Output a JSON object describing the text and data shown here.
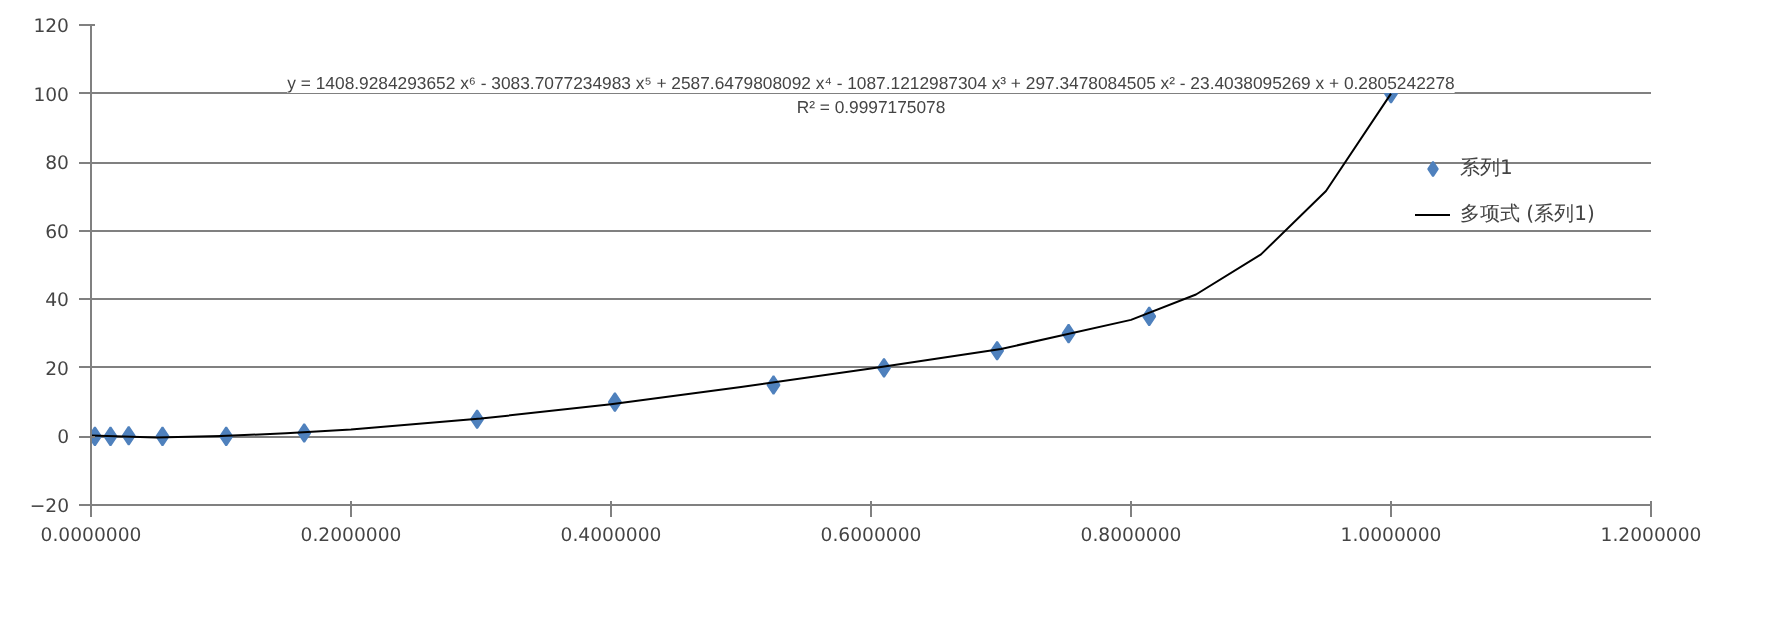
{
  "chart_data": {
    "type": "scatter",
    "xlim": [
      0,
      1.2
    ],
    "ylim": [
      -20,
      120
    ],
    "xticks": [
      {
        "value": 0,
        "label": "0.0000000"
      },
      {
        "value": 0.2,
        "label": "0.2000000"
      },
      {
        "value": 0.4,
        "label": "0.4000000"
      },
      {
        "value": 0.6,
        "label": "0.6000000"
      },
      {
        "value": 0.8,
        "label": "0.8000000"
      },
      {
        "value": 1.0,
        "label": "1.0000000"
      },
      {
        "value": 1.2,
        "label": "1.2000000"
      }
    ],
    "yticks": [
      -20,
      0,
      20,
      40,
      60,
      80,
      100,
      120
    ],
    "grid": "y",
    "legend": "right",
    "series": [
      {
        "name": "系列1",
        "color": "#4f81bd",
        "marker": "diamond",
        "x": [
          0.003,
          0.015,
          0.029,
          0.055,
          0.104,
          0.164,
          0.297,
          0.403,
          0.525,
          0.61,
          0.697,
          0.752,
          0.814,
          1.0
        ],
        "values": [
          0,
          0,
          0.2,
          0,
          0,
          1,
          5,
          10,
          15,
          20,
          25,
          30,
          35,
          100
        ]
      },
      {
        "name": "多项式 (系列1)",
        "type": "line",
        "color": "#000000",
        "line_style": "solid",
        "x": [
          0,
          0.05,
          0.1,
          0.15,
          0.2,
          0.3,
          0.4,
          0.5,
          0.6,
          0.7,
          0.8,
          0.85,
          0.9,
          0.95,
          1.0
        ],
        "values": [
          0.3,
          -0.3,
          0.1,
          0.9,
          2,
          5.2,
          9.4,
          14.4,
          19.8,
          25.5,
          34,
          41.4,
          53.1,
          71.6,
          100
        ]
      }
    ],
    "annotations": [
      "y = 1408.9284293652 x⁶ - 3083.7077234983 x⁵ + 2587.6479808092 x⁴ - 1087.1212987304 x³ + 297.3478084505 x² - 23.4038095269 x + 0.2805242278",
      "R² = 0.9997175078"
    ]
  }
}
